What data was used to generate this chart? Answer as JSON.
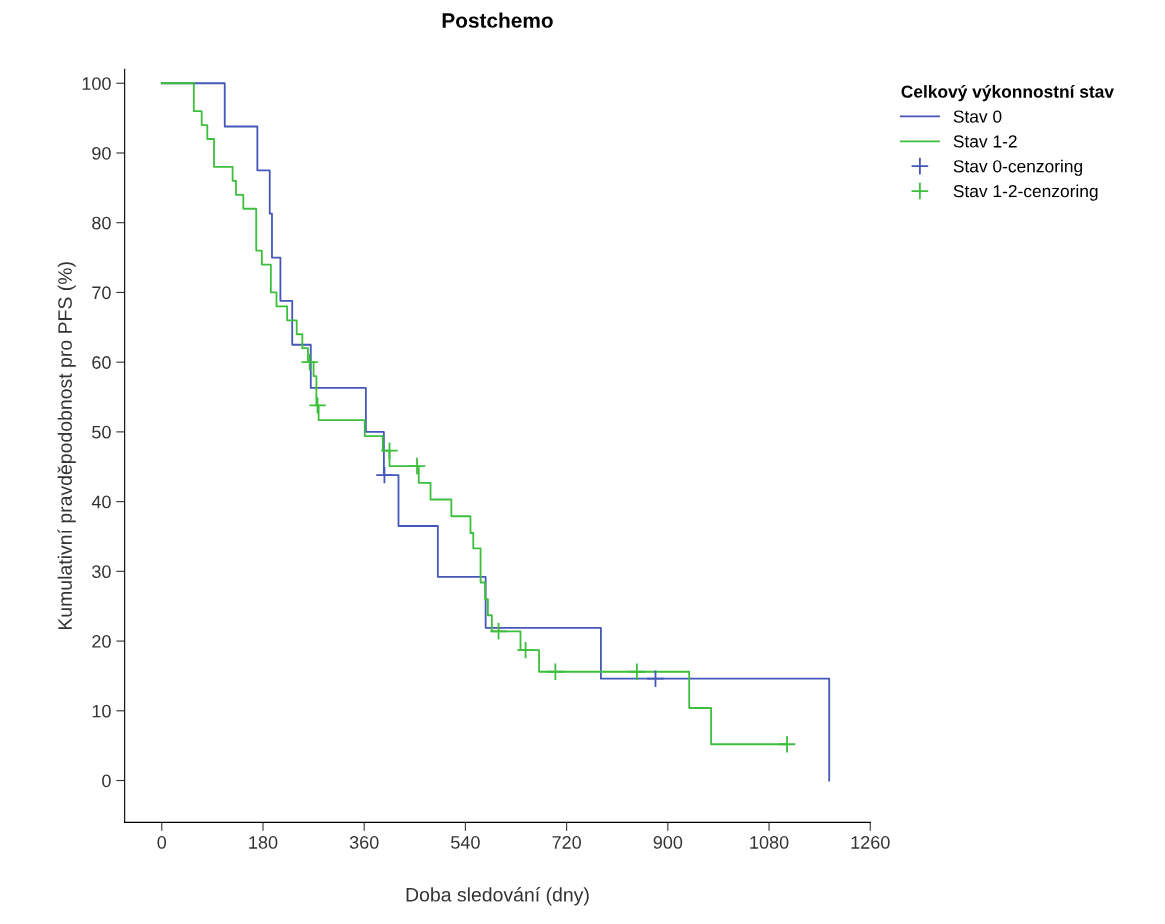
{
  "chart_data": {
    "type": "step",
    "title": "Postchemo",
    "xlabel": "Doba sledování (dny)",
    "ylabel": "Kumulativní pravděpodobnost pro PFS (%)",
    "legend_title": "Celkový výkonnostní stav",
    "legend": "right",
    "xlim": [
      -66,
      1260
    ],
    "ylim": [
      -6,
      102
    ],
    "xticks": [
      0,
      180,
      360,
      540,
      720,
      900,
      1080,
      1260
    ],
    "yticks": [
      0,
      10,
      20,
      30,
      40,
      50,
      60,
      70,
      80,
      90,
      100
    ],
    "series": [
      {
        "name": "Stav 0",
        "color": "#4557b8",
        "x": [
          0,
          112,
          170,
          192,
          196,
          211,
          232,
          265,
          363,
          395,
          421,
          491,
          576,
          781,
          1187
        ],
        "values": [
          100,
          93.8,
          87.5,
          81.3,
          75,
          68.8,
          62.5,
          56.3,
          50,
          43.8,
          36.5,
          29.2,
          21.9,
          14.6,
          0
        ]
      },
      {
        "name": "Stav 1-2",
        "color": "#3cbf3c",
        "x": [
          0,
          57,
          71,
          81,
          93,
          126,
          132,
          145,
          168,
          178,
          194,
          204,
          223,
          240,
          250,
          260,
          270,
          275,
          279,
          361,
          393,
          405,
          457,
          478,
          515,
          549,
          554,
          567,
          575,
          580,
          587,
          638,
          671,
          938,
          977,
          1112
        ],
        "values": [
          100,
          96,
          94,
          92,
          88,
          86,
          84,
          82,
          76,
          74,
          70,
          68,
          66,
          64,
          62,
          60,
          58,
          53.8,
          51.7,
          49.4,
          47.3,
          45.1,
          42.7,
          40.3,
          37.9,
          35.5,
          33.3,
          28.4,
          26,
          23.7,
          21.4,
          18.7,
          15.6,
          10.4,
          5.2,
          5.2
        ]
      },
      {
        "name": "Stav 0-cenzoring",
        "type": "scatter",
        "marker": "cross",
        "color": "#4557b8",
        "x": [
          396,
          878
        ],
        "values": [
          43.8,
          14.6
        ]
      },
      {
        "name": "Stav 1-2-cenzoring",
        "type": "scatter",
        "marker": "cross",
        "color": "#3cbf3c",
        "x": [
          263,
          277,
          405,
          454,
          599,
          647,
          700,
          845,
          1112
        ],
        "values": [
          60,
          53.8,
          47.3,
          45.1,
          21.4,
          18.7,
          15.6,
          15.6,
          5.2
        ]
      }
    ]
  }
}
